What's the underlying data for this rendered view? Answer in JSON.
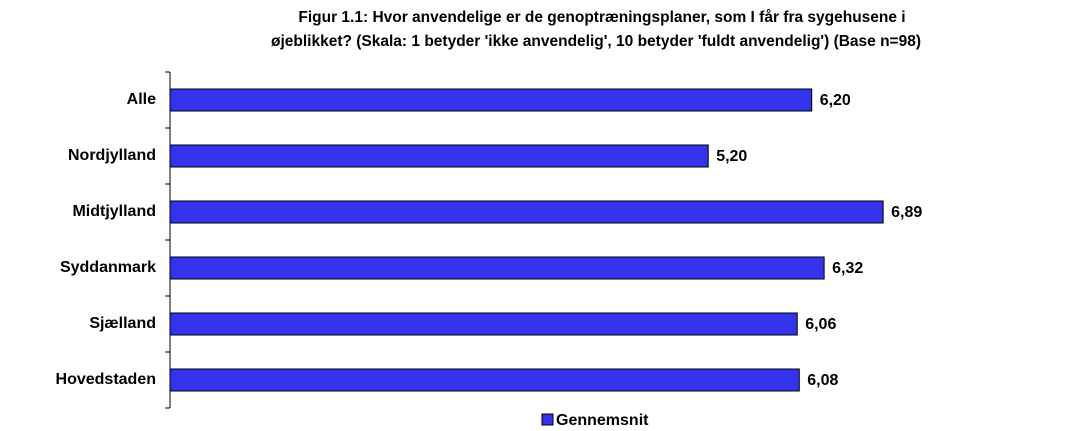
{
  "chart_data": {
    "type": "hbar",
    "title": [
      "Figur 1.1: Hvor anvendelige er de genoptræningsplaner, som I får fra sygehusene i",
      "øjeblikket? (Skala: 1 betyder 'ikke anvendelig', 10 betyder 'fuldt anvendelig') (Base n=98)"
    ],
    "categories": [
      "Alle",
      "Nordjylland",
      "Midtjylland",
      "Syddanmark",
      "Sjælland",
      "Hovedstaden"
    ],
    "series": [
      {
        "name": "Gennemsnit",
        "color": "#3333ee",
        "values": [
          6.2,
          5.2,
          6.89,
          6.32,
          6.06,
          6.08
        ],
        "value_labels": [
          "6,20",
          "5,20",
          "6,89",
          "6,32",
          "6,06",
          "6,08"
        ]
      }
    ],
    "xlim": [
      0,
      8
    ],
    "legend": "bottom"
  }
}
